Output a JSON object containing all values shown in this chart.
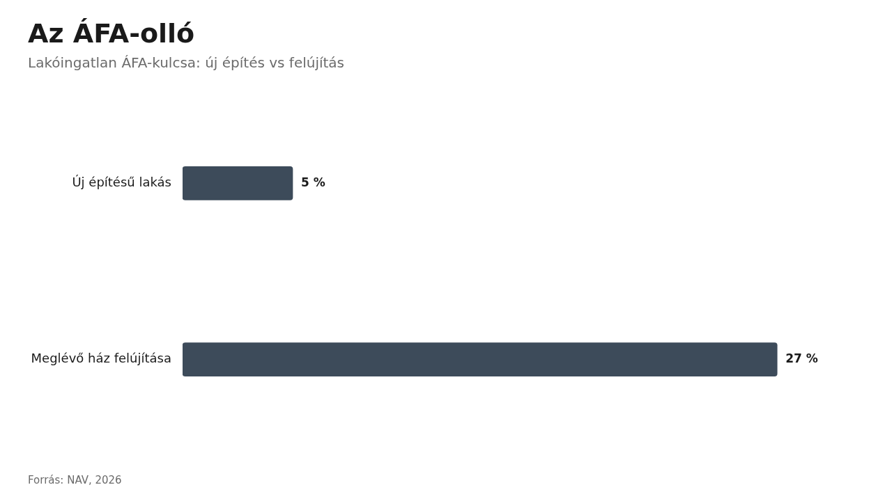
{
  "chart_data": {
    "type": "bar",
    "orientation": "horizontal",
    "title": "Az ÁFA-olló",
    "subtitle": "Lakóingatlan ÁFA-kulcsa: új építés vs felújítás",
    "categories": [
      "Új építésű lakás",
      "Meglévő ház felújítása"
    ],
    "values": [
      5,
      27
    ],
    "color": "#3d4b5a",
    "value_labels": [
      "5 %",
      "27 %"
    ],
    "grid": false,
    "legend": false,
    "annotations": [
      "Forrás: NAV, 2026"
    ]
  }
}
